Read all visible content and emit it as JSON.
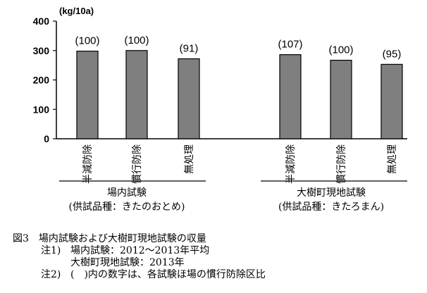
{
  "chart_data": {
    "type": "bar",
    "title": "",
    "unit_label": "(kg/10a)",
    "ylim": [
      0,
      400
    ],
    "yticks": [
      "400",
      "300",
      "200",
      "100",
      "0"
    ],
    "groups": [
      {
        "name": "場内試験",
        "subtitle": "(供試品種：きたのおとめ)",
        "categories": [
          "半減防除",
          "慣行防除",
          "無処理"
        ],
        "values": [
          298,
          300,
          272
        ],
        "index_labels": [
          "(100)",
          "(100)",
          "(91)"
        ]
      },
      {
        "name": "大樹町現地試験",
        "subtitle": "(供試品種：きたろまん)",
        "categories": [
          "半減防除",
          "慣行防除",
          "無処理"
        ],
        "values": [
          286,
          267,
          253
        ],
        "index_labels": [
          "(107)",
          "(100)",
          "(95)"
        ]
      }
    ],
    "bar_color": "#7f7f7f"
  },
  "caption": {
    "title": "図3　場内試験および大樹町現地試験の収量",
    "note1_label": "注1)",
    "note1_line1": "場内試験：2012～2013年平均",
    "note1_line2": "大樹町現地試験：2013年",
    "note2_label": "注2)",
    "note2_text": "(　)内の数字は、各試験ほ場の慣行防除区比"
  }
}
